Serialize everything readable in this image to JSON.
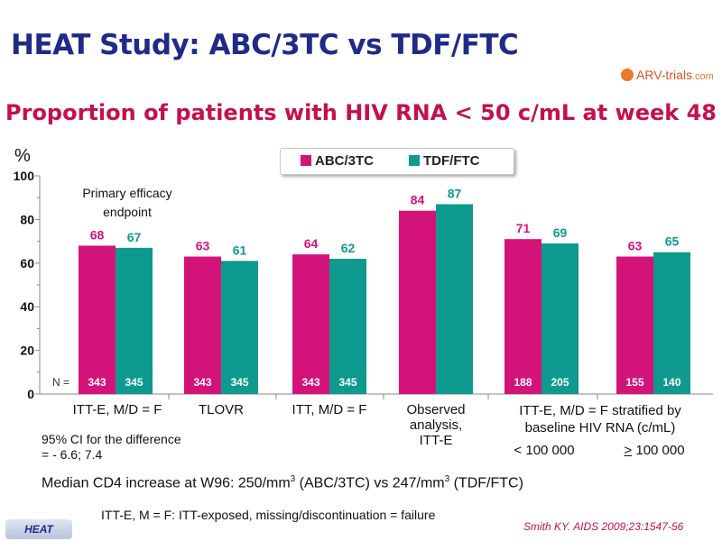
{
  "header": {
    "title": "HEAT Study: ABC/3TC vs TDF/FTC",
    "logo_text": "ARV-trials",
    "logo_domain": ".com"
  },
  "chart_data": {
    "type": "bar",
    "title": "Proportion of patients with HIV RNA < 50 c/mL at week 48",
    "ylabel": "%",
    "ylim": [
      0,
      100
    ],
    "yticks": [
      "0",
      "20",
      "40",
      "60",
      "80",
      "100"
    ],
    "legend_position": "top-center",
    "colors": {
      "ABC/3TC": "#d4137a",
      "TDF/FTC": "#0e9a8e"
    },
    "series": [
      {
        "name": "ABC/3TC",
        "values": [
          68,
          63,
          64,
          84,
          71,
          63
        ],
        "n": [
          "343",
          "343",
          "343",
          "",
          "188",
          "155"
        ]
      },
      {
        "name": "TDF/FTC",
        "values": [
          67,
          61,
          62,
          87,
          69,
          65
        ],
        "n": [
          "345",
          "345",
          "345",
          "",
          "205",
          "140"
        ]
      }
    ],
    "n_prefix": "N =",
    "annotation": {
      "primary_line1": "Primary efficacy",
      "primary_line2": "endpoint"
    }
  },
  "categories": {
    "c1": "ITT-E, M/D = F",
    "c2": "TLOVR",
    "c3": "ITT, M/D = F",
    "c4_l1": "Observed",
    "c4_l2": "analysis,",
    "c4_l3": "ITT-E",
    "c5_l1": "ITT-E, M/D = F stratified by",
    "c5_l2": "baseline HIV RNA (c/mL)",
    "c5_sub1": "< 100 000",
    "c5_sub2_sym": ">",
    "c5_sub2": " 100 000"
  },
  "ci_note": {
    "line1": "95% CI for the difference",
    "line2": "= - 6.6; 7.4"
  },
  "cd4": {
    "pre": "Median CD4 increase at W96: 250/mm",
    "sup1": "3",
    "mid": " (ABC/3TC) vs 247/mm",
    "sup2": "3",
    "post": " (TDF/FTC)"
  },
  "footnote": "ITT-E, M = F: ITT-exposed, missing/discontinuation = failure",
  "citation": "Smith KY. AIDS 2009;23:1547-56",
  "footer_tab": "HEAT"
}
